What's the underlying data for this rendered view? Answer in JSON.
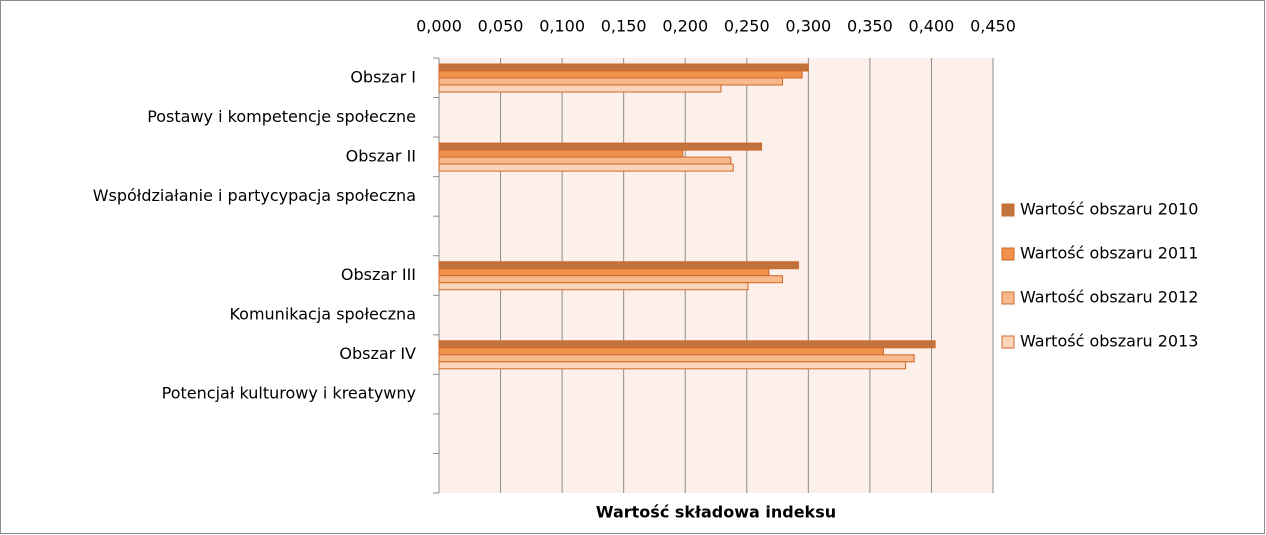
{
  "chart_data": {
    "type": "barh",
    "x_label": "Wartość składowa indeksu",
    "categories": [
      "Obszar I",
      "Postawy i kompetencje społeczne",
      "Obszar II",
      "Współdziałanie i partycypacja społeczna",
      null,
      "Obszar III",
      "Komunikacja społeczna",
      "Obszar IV",
      "Potencjał kulturowy i kreatywny",
      null,
      null
    ],
    "series": [
      {
        "name": "Wartość obszaru 2010",
        "color": "#c0733c",
        "values": [
          0.3,
          null,
          0.262,
          null,
          null,
          0.292,
          null,
          0.403,
          null,
          null,
          null
        ]
      },
      {
        "name": "Wartość obszaru 2011",
        "color": "#f0924c",
        "values": [
          0.295,
          null,
          0.198,
          null,
          null,
          0.268,
          null,
          0.361,
          null,
          null,
          null
        ]
      },
      {
        "name": "Wartość obszaru 2012",
        "color": "#f7b88a",
        "values": [
          0.279,
          null,
          0.237,
          null,
          null,
          0.279,
          null,
          0.386,
          null,
          null,
          null
        ]
      },
      {
        "name": "Wartość obszaru 2013",
        "color": "#fbd5b9",
        "values": [
          0.229,
          null,
          0.239,
          null,
          null,
          0.251,
          null,
          0.379,
          null,
          null,
          null
        ]
      }
    ],
    "xlim": [
      0,
      0.45
    ],
    "xticks": [
      {
        "value": 0,
        "label": "0,000"
      },
      {
        "value": 0.05,
        "label": "0,050"
      },
      {
        "value": 0.1,
        "label": "0,100"
      },
      {
        "value": 0.15,
        "label": "0,150"
      },
      {
        "value": 0.2,
        "label": "0,200"
      },
      {
        "value": 0.25,
        "label": "0,250"
      },
      {
        "value": 0.3,
        "label": "0,300"
      },
      {
        "value": 0.35,
        "label": "0,350"
      },
      {
        "value": 0.4,
        "label": "0,400"
      },
      {
        "value": 0.45,
        "label": "0,450"
      }
    ],
    "grid": true,
    "legend": "right"
  }
}
